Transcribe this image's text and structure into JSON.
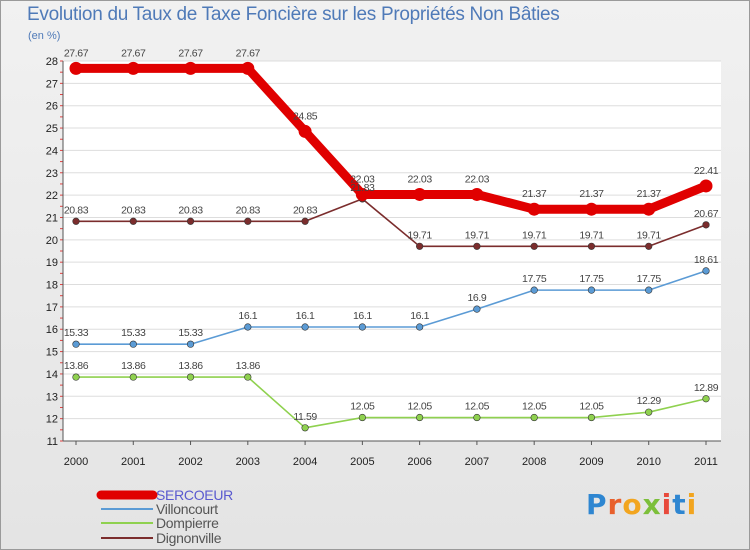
{
  "header": {
    "title": "Evolution du Taux de Taxe Foncière sur les Propriétés Non Bâties",
    "unit": "(en %)"
  },
  "brand": {
    "name": "Proxiti",
    "letters": [
      "P",
      "r",
      "o",
      "x",
      "i",
      "t",
      "i"
    ],
    "letter_colors": [
      "#2e86d1",
      "#e8602c",
      "#f2a51f",
      "#7cbf3a",
      "#e84a3c",
      "#2e86d1",
      "#f2a51f"
    ]
  },
  "chart_data": {
    "type": "line",
    "title": "Evolution du Taux de Taxe Foncière sur les Propriétés Non Bâties",
    "ylabel": "(en %)",
    "xlabel": "",
    "categories": [
      "2000",
      "2001",
      "2002",
      "2003",
      "2004",
      "2005",
      "2006",
      "2007",
      "2008",
      "2009",
      "2010",
      "2011"
    ],
    "ylim": [
      11,
      28
    ],
    "yticks": [
      11,
      12,
      13,
      14,
      15,
      16,
      17,
      18,
      19,
      20,
      21,
      22,
      23,
      24,
      25,
      26,
      27,
      28
    ],
    "grid": "horizontal",
    "legend_position": "bottom-left",
    "series": [
      {
        "name": "SERCOEUR",
        "color": "#e00000",
        "emphasis": true,
        "values": [
          27.67,
          27.67,
          27.67,
          27.67,
          24.85,
          22.03,
          22.03,
          22.03,
          21.37,
          21.37,
          21.37,
          22.41
        ],
        "labels": [
          "27.67",
          "27.67",
          "27.67",
          "27.67",
          "24.85",
          "22.03",
          "22.03",
          "22.03",
          "21.37",
          "21.37",
          "21.37",
          "22.41"
        ]
      },
      {
        "name": "Villoncourt",
        "color": "#5b9bd5",
        "emphasis": false,
        "values": [
          15.33,
          15.33,
          15.33,
          16.1,
          16.1,
          16.1,
          16.1,
          16.9,
          17.75,
          17.75,
          17.75,
          18.61
        ],
        "labels": [
          "15.33",
          "15.33",
          "15.33",
          "16.1",
          "16.1",
          "16.1",
          "16.1",
          "16.9",
          "17.75",
          "17.75",
          "17.75",
          "18.61"
        ]
      },
      {
        "name": "Dompierre",
        "color": "#8fd14f",
        "emphasis": false,
        "values": [
          13.86,
          13.86,
          13.86,
          13.86,
          11.59,
          12.05,
          12.05,
          12.05,
          12.05,
          12.05,
          12.29,
          12.89
        ],
        "labels": [
          "13.86",
          "13.86",
          "13.86",
          "13.86",
          "11.59",
          "12.05",
          "12.05",
          "12.05",
          "12.05",
          "12.05",
          "12.29",
          "12.89"
        ]
      },
      {
        "name": "Dignonville",
        "color": "#7b2d2d",
        "emphasis": false,
        "values": [
          20.83,
          20.83,
          20.83,
          20.83,
          20.83,
          21.83,
          19.71,
          19.71,
          19.71,
          19.71,
          19.71,
          20.67
        ],
        "labels": [
          "20.83",
          "20.83",
          "20.83",
          "20.83",
          "20.83",
          "21.83",
          "19.71",
          "19.71",
          "19.71",
          "19.71",
          "19.71",
          "20.67"
        ]
      }
    ]
  }
}
